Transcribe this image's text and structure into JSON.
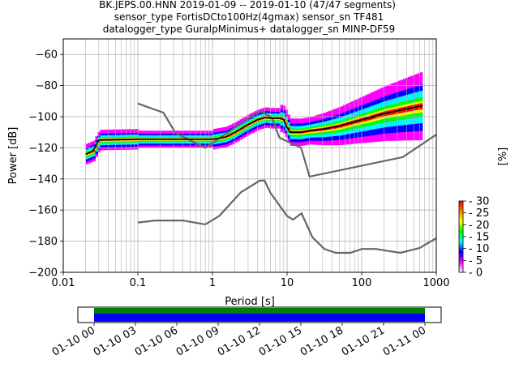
{
  "title": {
    "line1": "BK.JEPS.00.HNN   2019-01-09 -- 2019-01-10  (47/47 segments)",
    "line2": "sensor_type FortisDCto100Hz(4gmax) sensor_sn TF481",
    "line3": "datalogger_type GuralpMinimus+ datalogger_sn MINP-DF59"
  },
  "chart_data": [
    {
      "type": "heatmap",
      "subtype": "ppsd",
      "xlabel": "Period [s]",
      "ylabel": "Power [dB]",
      "xscale": "log",
      "xlim": [
        0.01,
        1000
      ],
      "ylim": [
        -200,
        -50
      ],
      "xtick_labels": [
        "0.01",
        "0.1",
        "1",
        "10",
        "100",
        "1000"
      ],
      "ytick_values": [
        -200,
        -180,
        -160,
        -140,
        -120,
        -100,
        -80,
        -60
      ],
      "grid": true,
      "colorbar": {
        "label": "[%]",
        "ticks": [
          0,
          5,
          10,
          15,
          20,
          25,
          30
        ],
        "range": [
          0,
          30
        ],
        "colormap": "pqlx",
        "colors": [
          "#ffffff",
          "#ff00ff",
          "#0000ff",
          "#00ffff",
          "#00ff00",
          "#ffff00",
          "#ff8000",
          "#ff0000"
        ]
      },
      "noise_models": {
        "color": "#666666",
        "nhnm": {
          "periods": [
            0.1,
            0.22,
            0.32,
            0.8,
            3.8,
            4.6,
            6.3,
            7.9,
            15.4,
            20,
            354.8,
            1000
          ],
          "db": [
            -91.5,
            -97.4,
            -110.5,
            -120.0,
            -98.0,
            -96.5,
            -101.0,
            -113.5,
            -120.0,
            -138.5,
            -126.0,
            -111.5
          ]
        },
        "nlnm": {
          "periods": [
            0.1,
            0.17,
            0.4,
            0.8,
            1.24,
            2.4,
            4.3,
            5.0,
            6.0,
            10.0,
            12.0,
            15.6,
            21.9,
            31.6,
            45.0,
            70.0,
            101.0,
            154.0,
            328.0,
            600.0,
            1000.0
          ],
          "db": [
            -168.0,
            -166.7,
            -166.7,
            -169.2,
            -163.7,
            -148.6,
            -141.1,
            -141.1,
            -149.0,
            -163.8,
            -166.2,
            -162.1,
            -177.5,
            -185.0,
            -187.5,
            -187.5,
            -185.0,
            -185.0,
            -187.5,
            -184.4,
            -178.0
          ]
        }
      },
      "mean": {
        "color": "#000000",
        "periods": [
          0.02,
          0.025,
          0.03,
          0.1,
          0.5,
          1.0,
          1.5,
          2.0,
          3.0,
          4.0,
          5.0,
          6.0,
          8.0,
          9.0,
          10.0,
          11.0,
          15.0,
          20.0,
          30.0,
          50.0,
          70.0,
          100.0,
          200.0,
          400.0,
          650.0
        ],
        "db": [
          -124,
          -122,
          -115,
          -114.5,
          -114.5,
          -114.5,
          -113,
          -110,
          -105,
          -102,
          -100.5,
          -101,
          -101,
          -102,
          -107,
          -110,
          -110,
          -109,
          -108,
          -106,
          -104,
          -102,
          -98,
          -95,
          -93
        ]
      },
      "mode_periods": [
        0.02,
        0.025,
        0.03,
        0.1,
        0.5,
        1.0,
        1.5,
        2.0,
        3.0,
        4.0,
        5.0,
        6.0,
        8.0,
        9.0,
        10.0,
        11.0,
        15.0,
        20.0,
        30.0,
        50.0,
        70.0,
        100.0,
        200.0,
        400.0,
        650.0
      ]
    },
    {
      "type": "timeline",
      "coverage": "full",
      "xtick_labels": [
        "01-10 00",
        "01-10 03",
        "01-10 06",
        "01-10 09",
        "01-10 12",
        "01-10 15",
        "01-10 18",
        "01-10 21",
        "01-11 00"
      ],
      "colors": {
        "data": "#008000",
        "processed": "#0000ff"
      }
    }
  ]
}
